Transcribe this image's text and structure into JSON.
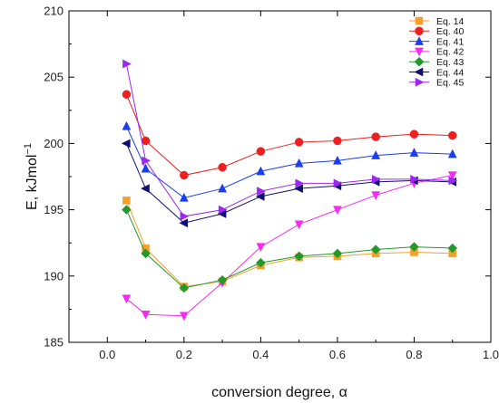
{
  "chart_data": {
    "type": "line",
    "xlabel": "conversion degree, α",
    "ylabel": "E, kJmol",
    "ylabel_sup": "−1",
    "xlim": [
      -0.1,
      1.0
    ],
    "ylim": [
      185,
      210
    ],
    "xticks": [
      "0.0",
      "0.2",
      "0.4",
      "0.6",
      "0.8",
      "1.0"
    ],
    "yticks": [
      "185",
      "190",
      "195",
      "200",
      "205",
      "210"
    ],
    "legend_position": "top-right",
    "grid": false,
    "x": [
      0.05,
      0.1,
      0.2,
      0.3,
      0.4,
      0.5,
      0.6,
      0.7,
      0.8,
      0.9
    ],
    "series": [
      {
        "name": "Eq. 14",
        "marker": "square",
        "color": "#f5a02a",
        "values": [
          195.7,
          192.1,
          189.2,
          189.6,
          190.8,
          191.4,
          191.5,
          191.7,
          191.8,
          191.7
        ]
      },
      {
        "name": "Eq. 40",
        "marker": "circle",
        "color": "#ee1f1f",
        "values": [
          203.7,
          200.2,
          197.6,
          198.2,
          199.4,
          200.1,
          200.2,
          200.5,
          200.7,
          200.6
        ]
      },
      {
        "name": "Eq. 41",
        "marker": "triangle-up",
        "color": "#1a3df0",
        "values": [
          201.3,
          198.1,
          195.9,
          196.6,
          197.9,
          198.5,
          198.7,
          199.1,
          199.3,
          199.2
        ]
      },
      {
        "name": "Eq. 42",
        "marker": "triangle-down",
        "color": "#f52cf0",
        "values": [
          188.3,
          187.1,
          187.0,
          189.5,
          192.2,
          193.9,
          195.0,
          196.1,
          197.0,
          197.6
        ]
      },
      {
        "name": "Eq. 43",
        "marker": "diamond",
        "color": "#21992b",
        "values": [
          195.0,
          191.7,
          189.1,
          189.7,
          191.0,
          191.5,
          191.7,
          192.0,
          192.2,
          192.1
        ]
      },
      {
        "name": "Eq. 44",
        "marker": "triangle-left",
        "color": "#10106e",
        "values": [
          200.0,
          196.6,
          194.0,
          194.7,
          196.0,
          196.6,
          196.8,
          197.1,
          197.2,
          197.1
        ]
      },
      {
        "name": "Eq. 45",
        "marker": "triangle-right",
        "color": "#9b27f0",
        "values": [
          206.0,
          198.7,
          194.5,
          195.0,
          196.4,
          197.0,
          197.0,
          197.3,
          197.3,
          197.2
        ]
      }
    ]
  }
}
